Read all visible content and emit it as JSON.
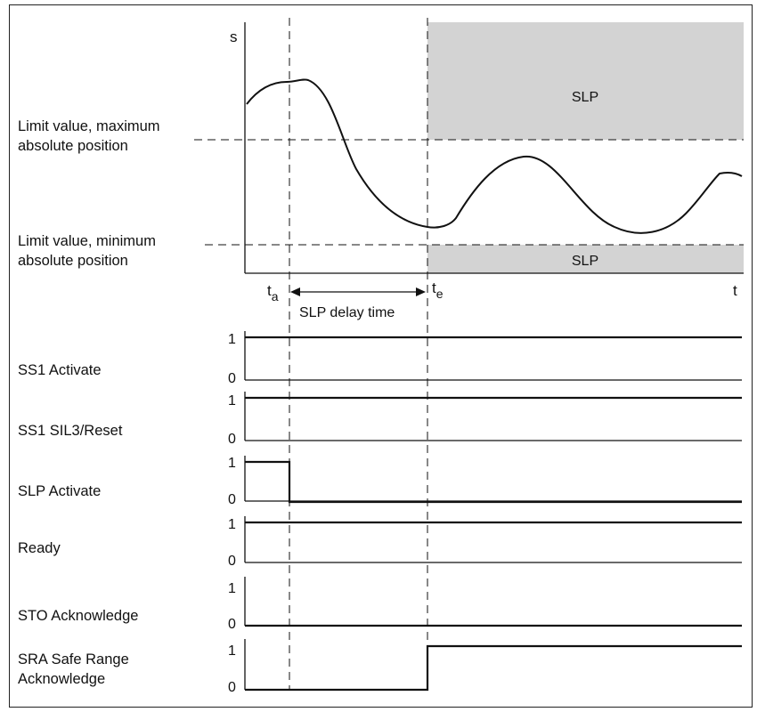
{
  "diagram": {
    "axis_y_label": "s",
    "axis_x_label": "t",
    "ta_label": "t",
    "ta_sub": "a",
    "te_label": "t",
    "te_sub": "e",
    "delay_label": "SLP delay time",
    "limit_max_line1": "Limit value, maximum",
    "limit_max_line2": "absolute position",
    "limit_min_line1": "Limit value, minimum",
    "limit_min_line2": "absolute position",
    "zone_upper_label": "SLP",
    "zone_lower_label": "SLP",
    "zone_color": "#d3d3d3"
  },
  "signals": [
    {
      "line1": "SS1 Activate",
      "line2": "",
      "high": "1",
      "low": "0"
    },
    {
      "line1": "SS1 SIL3/Reset",
      "line2": "",
      "high": "1",
      "low": "0"
    },
    {
      "line1": "SLP Activate",
      "line2": "",
      "high": "1",
      "low": "0"
    },
    {
      "line1": "Ready",
      "line2": "",
      "high": "1",
      "low": "0"
    },
    {
      "line1": "STO Acknowledge",
      "line2": "",
      "high": "1",
      "low": "0"
    },
    {
      "line1": "SRA Safe Range",
      "line2": "Acknowledge",
      "high": "1",
      "low": "0"
    }
  ]
}
